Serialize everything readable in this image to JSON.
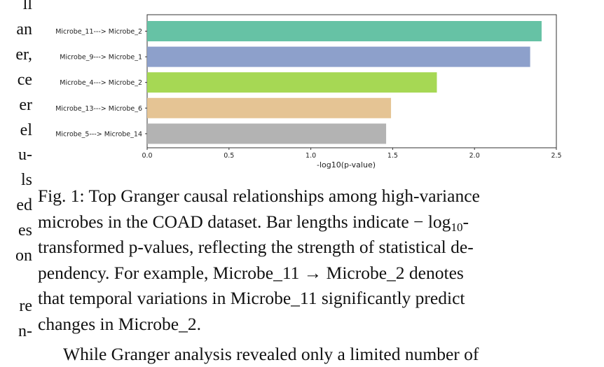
{
  "left_column_fragments": [
    "ll",
    "an",
    "er,",
    "ce",
    "er",
    "el",
    "u-",
    "ls",
    "ed",
    "es",
    "on",
    "",
    "re",
    "n-"
  ],
  "chart_data": {
    "type": "bar",
    "orientation": "horizontal",
    "categories": [
      "Microbe_11---> Microbe_2",
      "Microbe_9---> Microbe_1",
      "Microbe_4---> Microbe_2",
      "Microbe_13---> Microbe_6",
      "Microbe_5---> Microbe_14"
    ],
    "values": [
      2.41,
      2.34,
      1.77,
      1.49,
      1.46
    ],
    "colors": [
      "#66c2a5",
      "#8da0cb",
      "#a6d854",
      "#e5c494",
      "#b3b3b3"
    ],
    "xlabel": "-log10(p-value)",
    "xlim": [
      0,
      2.5
    ],
    "xticks": [
      "0.0",
      "0.5",
      "1.0",
      "1.5",
      "2.0",
      "2.5"
    ],
    "grid": false
  },
  "caption": {
    "label": "Fig. 1:",
    "lines": [
      "Top Granger causal relationships among high-variance",
      "microbes in the COAD dataset. Bar lengths indicate",
      "transformed p-values, reflecting the strength of statistical de-",
      "pendency. For example, Microbe_11 → Microbe_2 denotes",
      "that temporal variations in Microbe_11 significantly predict",
      "changes in Microbe_2."
    ],
    "math_minus": "−",
    "math_log": "log",
    "math_sub": "10",
    "math_hyphen": "-"
  },
  "body_text": "While Granger analysis revealed only a limited number of"
}
